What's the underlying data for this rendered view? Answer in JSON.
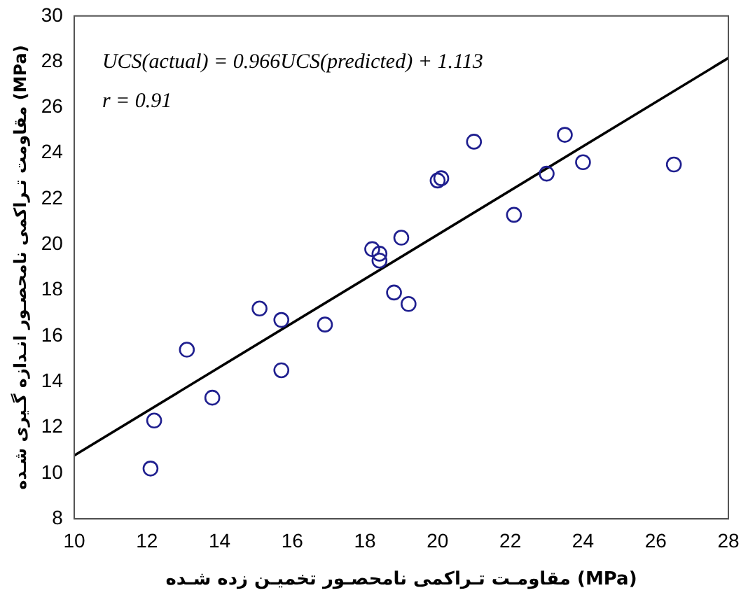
{
  "chart_data": {
    "type": "scatter",
    "xlabel": "مقاومـت تـراکمی نامحصـور تخمیـن زده شـده (MPa)",
    "ylabel": "مقاومت تـراکمی نامحصـور انـدازه گـیری شـده (MPa)",
    "xlim": [
      10,
      28
    ],
    "xticks": [
      10,
      12,
      14,
      16,
      18,
      20,
      22,
      24,
      26,
      28
    ],
    "ylim": [
      8,
      30
    ],
    "yticks": [
      8,
      10,
      12,
      14,
      16,
      18,
      20,
      22,
      24,
      26,
      28,
      30
    ],
    "grid": false,
    "legend": false,
    "marker": "circle",
    "annotations": [
      "UCS(actual) = 0.966UCS(predicted) + 1.113",
      "r = 0.91"
    ],
    "series": [
      {
        "color": "#1f1f8f",
        "x": [
          12.1,
          12.2,
          13.1,
          13.8,
          15.1,
          15.7,
          15.7,
          16.9,
          18.2,
          18.4,
          18.4,
          18.8,
          19.2,
          19.0,
          20.0,
          20.1,
          21.0,
          22.1,
          23.0,
          23.5,
          24.0,
          26.5
        ],
        "values": [
          10.2,
          12.3,
          15.4,
          13.3,
          17.2,
          16.7,
          14.5,
          16.5,
          19.8,
          19.6,
          19.3,
          17.9,
          17.4,
          20.3,
          22.8,
          22.9,
          24.5,
          21.3,
          23.1,
          24.8,
          23.6,
          23.5
        ]
      },
      {
        "type": "line",
        "color": "#000000",
        "marker": "none",
        "line_style": "solid",
        "x": [
          10,
          28
        ],
        "values": [
          10.77,
          28.16
        ]
      }
    ]
  }
}
